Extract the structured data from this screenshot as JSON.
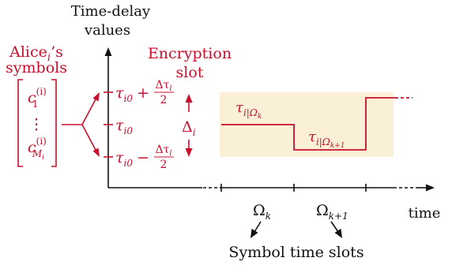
{
  "labels": {
    "y_axis_title_line1": "Time-delay",
    "y_axis_title_line2": "values",
    "alice_line1_base": "Alice",
    "alice_line1_sub": "i",
    "alice_line1_suffix": "’s",
    "alice_line2": "symbols",
    "encryption_line1": "Encryption",
    "encryption_line2": "slot",
    "x_axis_title": "time",
    "symbol_time_slots": "Symbol time slots"
  },
  "matrix": {
    "top_base": "c",
    "top_sup": "(i)",
    "top_sub": "1",
    "dots": "⋮",
    "bottom_base": "c",
    "bottom_sup": "(i)",
    "bottom_sub": "M",
    "bottom_subsub": "i"
  },
  "levels": {
    "upper_base": "τ",
    "upper_sub": "i0",
    "upper_op": "+",
    "frac_num": "Δτ",
    "frac_num_sub": "i",
    "frac_den": "2",
    "middle_base": "τ",
    "middle_sub": "i0",
    "lower_base": "τ",
    "lower_sub": "i0",
    "lower_op": "−"
  },
  "delta": {
    "base": "Δ",
    "sub": "i"
  },
  "signal_labels": {
    "first_base": "τ",
    "first_sub": "i|Ω",
    "first_subsub": "k",
    "second_base": "τ",
    "second_sub": "i|Ω",
    "second_subsub": "k+1"
  },
  "slots": {
    "omega_k_base": "Ω",
    "omega_k_sub": "k",
    "omega_k1_base": "Ω",
    "omega_k1_sub": "k+1"
  },
  "colors": {
    "accent": "#c8102e",
    "highlight": "#faf0d7",
    "ink": "#111111"
  }
}
